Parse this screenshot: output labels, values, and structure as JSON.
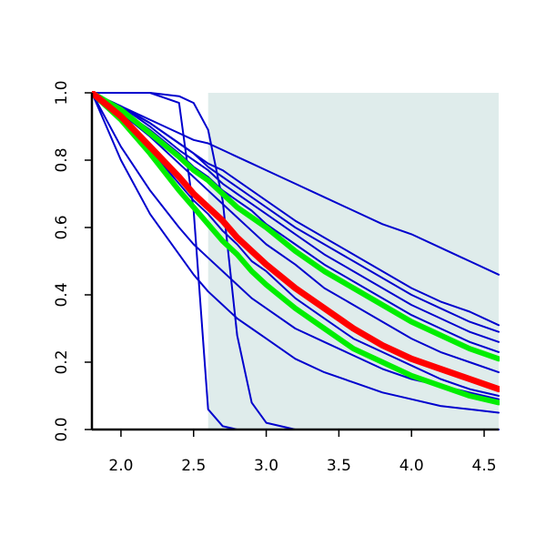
{
  "chart_data": {
    "type": "line",
    "x": [
      1.8,
      2.0,
      2.2,
      2.4,
      2.5,
      2.6,
      2.7,
      2.8,
      2.9,
      3.0,
      3.2,
      3.4,
      3.6,
      3.8,
      4.0,
      4.2,
      4.4,
      4.6
    ],
    "xlim": [
      1.8,
      4.6
    ],
    "ylim": [
      0,
      1
    ],
    "xticks": [
      {
        "value": 2,
        "label": "2.0"
      },
      2.5,
      {
        "value": 3,
        "label": "3.0"
      },
      3.5,
      {
        "value": 4,
        "label": "4.0"
      },
      4.5
    ],
    "yticks": [
      {
        "value": 0,
        "label": "0.0"
      },
      0.2,
      0.4,
      0.6,
      0.8,
      {
        "value": 1,
        "label": "1.0"
      }
    ],
    "shade": {
      "xmin": 2.6,
      "color": "#dfeceb"
    },
    "series": [
      {
        "color": "#0000cd",
        "line_width": 2,
        "values": [
          1,
          0.96,
          0.92,
          0.88,
          0.86,
          0.85,
          0.83,
          0.81,
          0.79,
          0.77,
          0.73,
          0.69,
          0.65,
          0.61,
          0.58,
          0.54,
          0.5,
          0.46
        ]
      },
      {
        "color": "#0000cd",
        "line_width": 2,
        "values": [
          1,
          1,
          1,
          0.97,
          0.65,
          0.06,
          0.01,
          0,
          0,
          0,
          0,
          0,
          0,
          0,
          0,
          0,
          0,
          0
        ]
      },
      {
        "color": "#0000cd",
        "line_width": 2,
        "values": [
          1,
          1,
          1,
          0.99,
          0.97,
          0.89,
          0.68,
          0.28,
          0.08,
          0.02,
          0,
          0,
          0,
          0,
          0,
          0,
          0,
          0
        ]
      },
      {
        "color": "#0000cd",
        "line_width": 2,
        "values": [
          1,
          0.96,
          0.91,
          0.85,
          0.82,
          0.79,
          0.77,
          0.74,
          0.71,
          0.68,
          0.62,
          0.57,
          0.52,
          0.47,
          0.42,
          0.38,
          0.35,
          0.31
        ]
      },
      {
        "color": "#0000cd",
        "line_width": 2,
        "values": [
          1,
          0.96,
          0.91,
          0.85,
          0.82,
          0.78,
          0.75,
          0.72,
          0.69,
          0.66,
          0.6,
          0.55,
          0.5,
          0.45,
          0.4,
          0.36,
          0.32,
          0.29
        ]
      },
      {
        "color": "#0000cd",
        "line_width": 2,
        "values": [
          1,
          0.96,
          0.9,
          0.83,
          0.8,
          0.77,
          0.73,
          0.7,
          0.67,
          0.64,
          0.58,
          0.52,
          0.47,
          0.42,
          0.37,
          0.33,
          0.29,
          0.26
        ]
      },
      {
        "color": "#0000cd",
        "line_width": 2,
        "values": [
          1,
          0.95,
          0.89,
          0.82,
          0.78,
          0.75,
          0.71,
          0.68,
          0.65,
          0.61,
          0.55,
          0.49,
          0.44,
          0.39,
          0.34,
          0.3,
          0.26,
          0.23
        ]
      },
      {
        "color": "#0000cd",
        "line_width": 2,
        "values": [
          1,
          0.94,
          0.87,
          0.79,
          0.75,
          0.71,
          0.67,
          0.63,
          0.59,
          0.55,
          0.49,
          0.42,
          0.37,
          0.32,
          0.27,
          0.23,
          0.2,
          0.17
        ]
      },
      {
        "color": "#0000cd",
        "line_width": 2,
        "values": [
          1,
          0.93,
          0.83,
          0.73,
          0.68,
          0.64,
          0.59,
          0.55,
          0.5,
          0.47,
          0.39,
          0.33,
          0.27,
          0.23,
          0.19,
          0.15,
          0.12,
          0.1
        ]
      },
      {
        "color": "#0000cd",
        "line_width": 2,
        "values": [
          1,
          0.84,
          0.71,
          0.6,
          0.55,
          0.51,
          0.47,
          0.43,
          0.39,
          0.36,
          0.3,
          0.26,
          0.22,
          0.18,
          0.15,
          0.13,
          0.11,
          0.09
        ]
      },
      {
        "color": "#0000cd",
        "line_width": 2,
        "values": [
          1,
          0.8,
          0.64,
          0.52,
          0.46,
          0.41,
          0.37,
          0.33,
          0.3,
          0.27,
          0.21,
          0.17,
          0.14,
          0.11,
          0.09,
          0.07,
          0.06,
          0.05
        ]
      },
      {
        "color": "#00ee00",
        "line_width": 6,
        "values": [
          1,
          0.95,
          0.88,
          0.81,
          0.77,
          0.74,
          0.7,
          0.66,
          0.63,
          0.6,
          0.53,
          0.47,
          0.42,
          0.37,
          0.32,
          0.28,
          0.24,
          0.21
        ]
      },
      {
        "color": "#00ee00",
        "line_width": 6,
        "values": [
          1,
          0.92,
          0.82,
          0.71,
          0.66,
          0.61,
          0.56,
          0.52,
          0.47,
          0.43,
          0.36,
          0.3,
          0.24,
          0.2,
          0.16,
          0.13,
          0.1,
          0.08
        ]
      },
      {
        "color": "#ff0000",
        "line_width": 7,
        "values": [
          1,
          0.93,
          0.84,
          0.75,
          0.7,
          0.66,
          0.62,
          0.57,
          0.53,
          0.49,
          0.42,
          0.36,
          0.3,
          0.25,
          0.21,
          0.18,
          0.15,
          0.12
        ]
      }
    ]
  }
}
